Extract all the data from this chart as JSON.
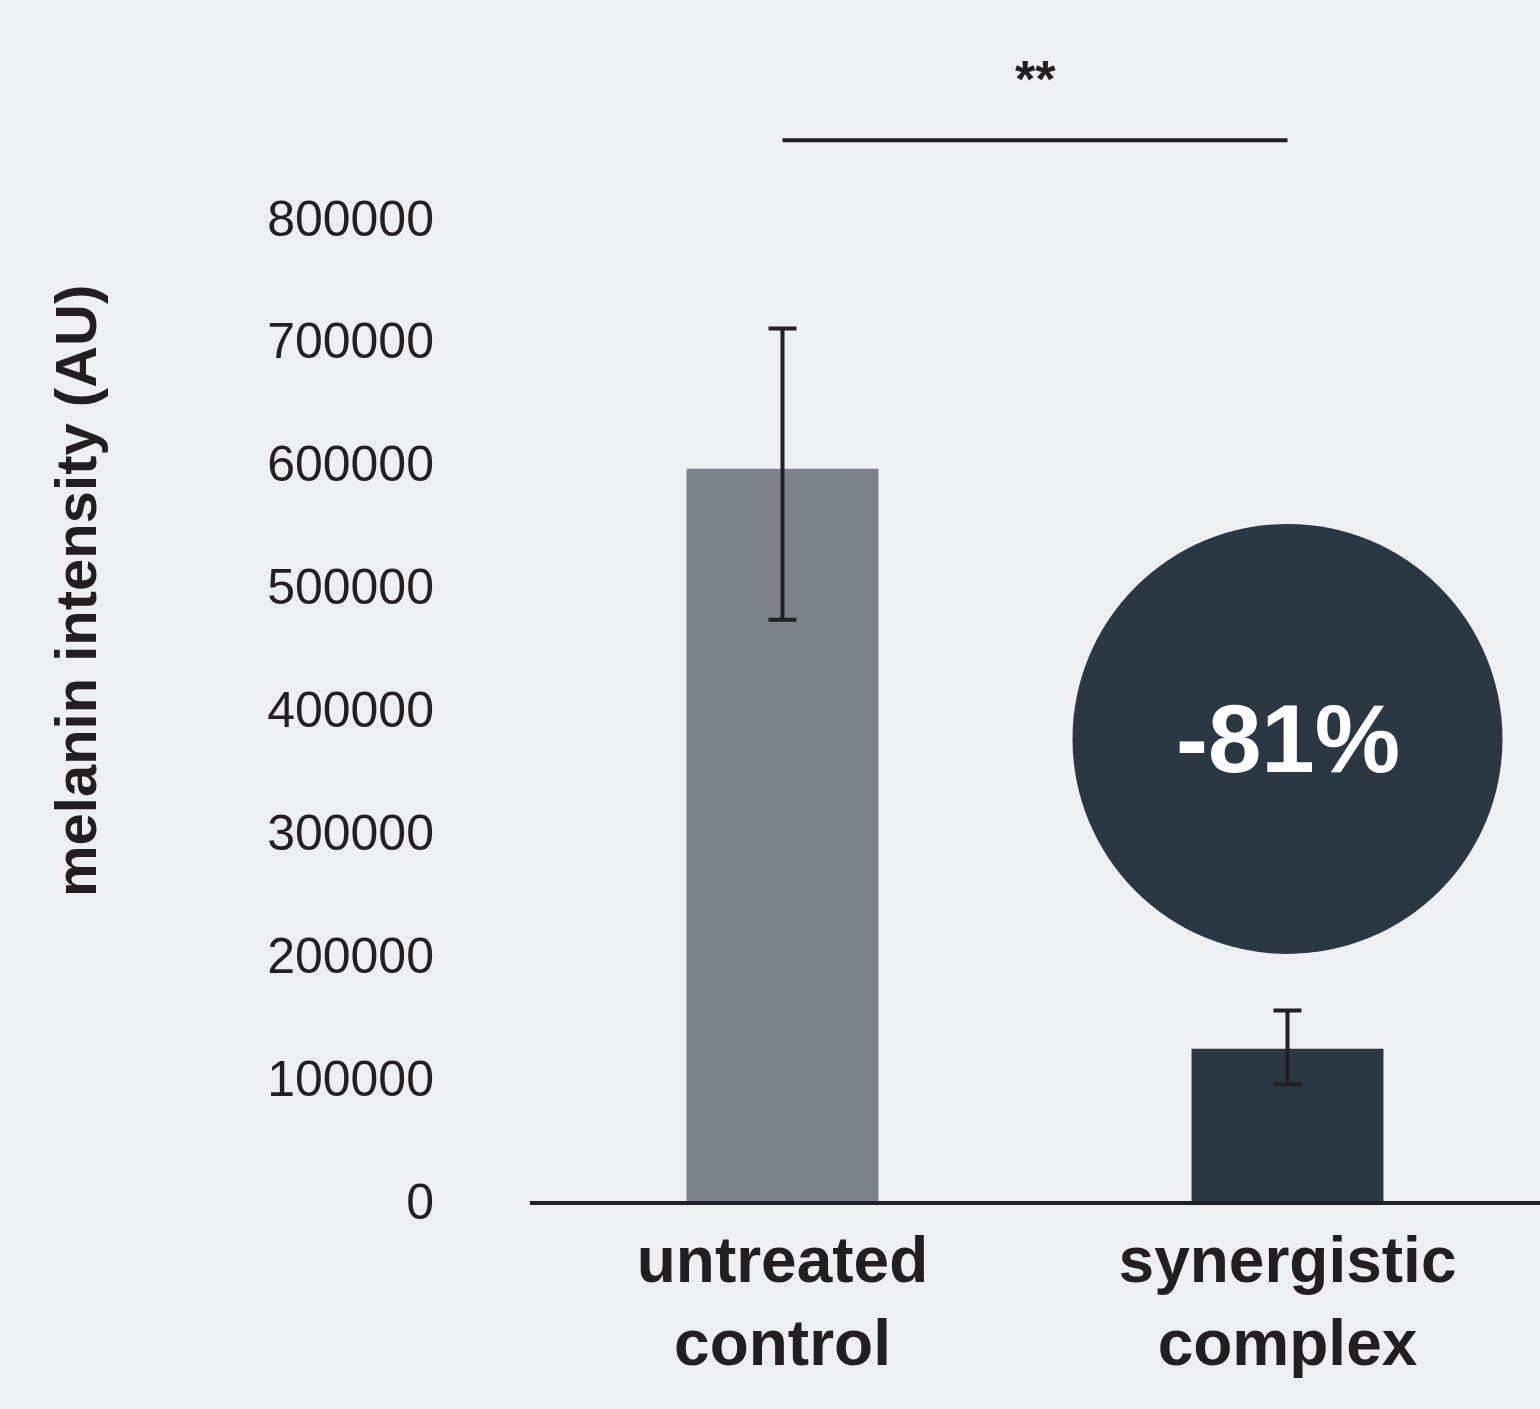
{
  "chart_data": {
    "type": "bar",
    "ylabel": "melanin intensity (AU)",
    "categories": [
      "untreated control",
      "synergistic complex"
    ],
    "values": [
      596000,
      124000
    ],
    "colors": [
      "#7d818b",
      "#293842"
    ],
    "errors": [
      [
        473000,
        710000
      ],
      [
        95000,
        155000
      ]
    ],
    "ylim": [
      0,
      800000
    ],
    "yticks": [
      0,
      100000,
      200000,
      300000,
      400000,
      500000,
      600000,
      700000,
      800000
    ],
    "grid": false,
    "annotations": [
      "**",
      "-81%"
    ]
  }
}
